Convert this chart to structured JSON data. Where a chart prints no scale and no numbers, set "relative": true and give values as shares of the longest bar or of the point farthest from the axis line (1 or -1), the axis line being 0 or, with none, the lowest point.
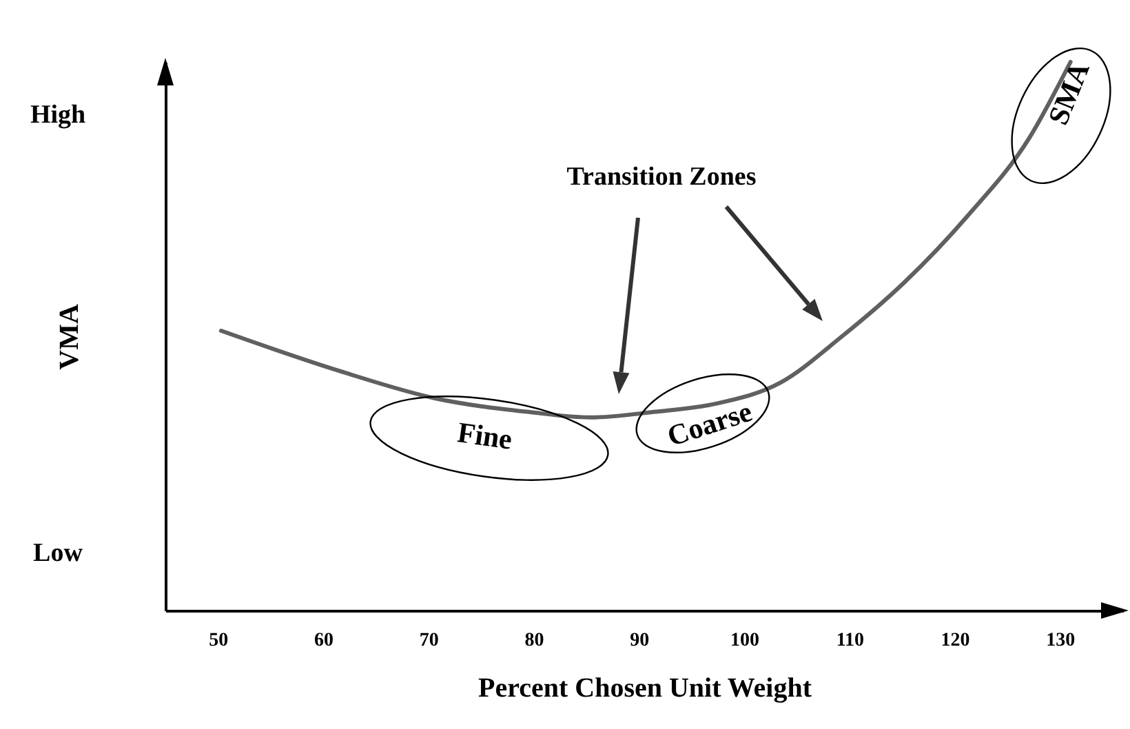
{
  "chart_data": {
    "type": "line",
    "relative": true,
    "xlabel": "Percent Chosen Unit Weight",
    "ylabel": "VMA",
    "x": [
      50.3,
      61.5,
      70.6,
      79.5,
      85.4,
      91.4,
      97.3,
      103.4,
      109.3,
      115.2,
      121.2,
      127.1,
      131
    ],
    "series": [
      {
        "color": "#606060",
        "values": [
          0.51,
          0.437,
          0.387,
          0.362,
          0.352,
          0.362,
          0.377,
          0.415,
          0.5,
          0.598,
          0.719,
          0.862,
          1
        ]
      }
    ],
    "xlim": [
      45,
      136
    ],
    "xticks": [
      50,
      60,
      70,
      80,
      90,
      100,
      110,
      120,
      130
    ],
    "grid": false,
    "marker": "none",
    "line_style": "solid",
    "annotations": [
      "High",
      "Low",
      "Transition Zones",
      {
        "text": "Fine",
        "x": 76,
        "y": 0.37
      },
      {
        "text": "Coarse",
        "x": 100,
        "y": 0.39
      },
      {
        "text": "SMA",
        "x": 129,
        "y": 0.93
      }
    ]
  }
}
